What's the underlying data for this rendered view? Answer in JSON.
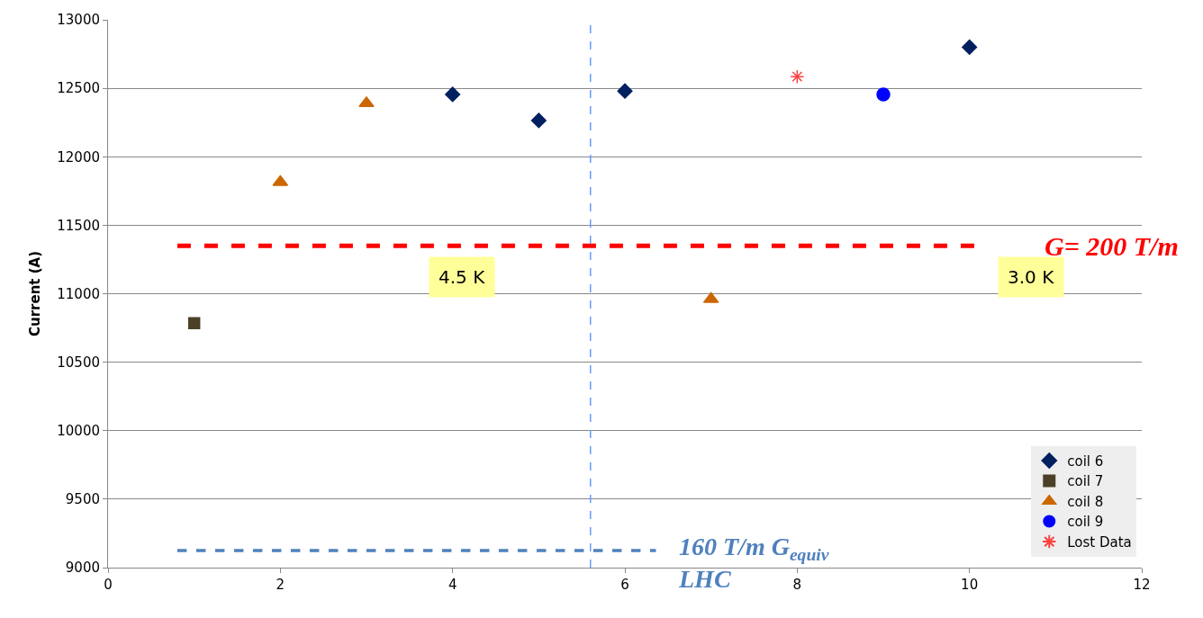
{
  "chart_data": {
    "type": "scatter",
    "ylabel": "Current (A)",
    "xlim": [
      0,
      12
    ],
    "xticks": [
      0,
      2,
      4,
      6,
      8,
      10,
      12
    ],
    "ylim": [
      9000,
      13000
    ],
    "yticks": [
      9000,
      9500,
      10000,
      10500,
      11000,
      11500,
      12000,
      12500,
      13000
    ],
    "grid": "y",
    "legend": "bottom right",
    "series": [
      {
        "name": "coil 6",
        "color": "#002060",
        "marker": "diamond",
        "x": [
          4,
          5,
          6,
          10
        ],
        "values": [
          12455,
          12265,
          12480,
          12800
        ]
      },
      {
        "name": "coil 7",
        "color": "#4a4128",
        "marker": "square",
        "x": [
          1
        ],
        "values": [
          10785
        ]
      },
      {
        "name": "coil 8",
        "color": "#cc6600",
        "marker": "triangle",
        "x": [
          2,
          3,
          7
        ],
        "values": [
          11815,
          12390,
          10960
        ]
      },
      {
        "name": "coil 9",
        "color": "#0000ff",
        "marker": "circle",
        "x": [
          9
        ],
        "values": [
          12455
        ]
      },
      {
        "name": "Lost Data",
        "color": "#ff4040",
        "marker": "cross",
        "x": [
          8
        ],
        "values": [
          12585
        ]
      }
    ],
    "ref_lines": [
      {
        "axis": "y",
        "value": 11350,
        "color": "#ff0000",
        "line_style": "dashed"
      },
      {
        "axis": "y",
        "value": 9125,
        "color": "#4f81bd",
        "line_style": "dashed"
      },
      {
        "axis": "x",
        "value": 5.6,
        "color": "#6699ff",
        "line_style": "dashed"
      }
    ],
    "annotations": [
      "4.5 K",
      "3.0 K",
      "G= 200 T/m",
      "160 T/m G$_{equiv}$ LHC"
    ]
  }
}
